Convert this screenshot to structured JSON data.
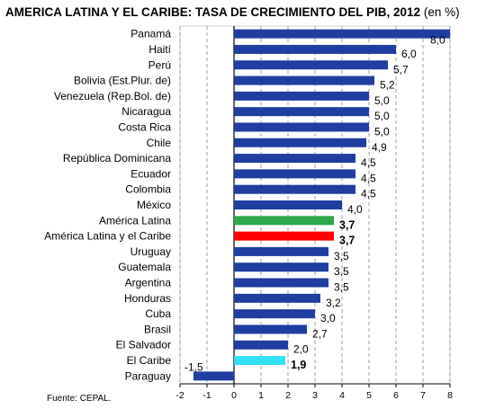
{
  "title": "AMERICA LATINA Y EL CARIBE: TASA DE CRECIMIENTO DEL PIB, 2012",
  "title_unit": "(en %)",
  "source": "Fuente: CEPAL.",
  "chart_data": {
    "type": "bar",
    "orientation": "horizontal",
    "xlim": [
      -2,
      8
    ],
    "xticks": [
      -2,
      -1,
      0,
      1,
      2,
      3,
      4,
      5,
      6,
      7,
      8
    ],
    "grid": "vertical dashed",
    "colors": {
      "default": "#1f3ea0",
      "América Latina": "#2ea84a",
      "América Latina y el Caribe": "#ff0000",
      "El Caribe": "#33e0f7"
    },
    "categories": [
      "Panamá",
      "Haití",
      "Perú",
      "Bolivia (Est.Plur. de)",
      "Venezuela (Rep.Bol. de)",
      "Nicaragua",
      "Costa Rica",
      "Chile",
      "República Dominicana",
      "Ecuador",
      "Colombia",
      "México",
      "América Latina",
      "América Latina y el Caribe",
      "Uruguay",
      "Guatemala",
      "Argentina",
      "Honduras",
      "Cuba",
      "Brasil",
      "El Salvador",
      "El Caribe",
      "Paraguay"
    ],
    "values": [
      8.0,
      6.0,
      5.7,
      5.2,
      5.0,
      5.0,
      5.0,
      4.9,
      4.5,
      4.5,
      4.5,
      4.0,
      3.7,
      3.7,
      3.5,
      3.5,
      3.5,
      3.2,
      3.0,
      2.7,
      2.0,
      1.9,
      -1.5
    ],
    "value_labels": [
      "8,0",
      "6,0",
      "5,7",
      "5,2",
      "5,0",
      "5,0",
      "5,0",
      "4,9",
      "4,5",
      "4,5",
      "4,5",
      "4,0",
      "3,7",
      "3,7",
      "3,5",
      "3,5",
      "3,5",
      "3,2",
      "3,0",
      "2,7",
      "2,0",
      "1,9",
      "-1,5"
    ],
    "bold_labels": [
      "América Latina",
      "América Latina y el Caribe",
      "El Caribe"
    ]
  }
}
